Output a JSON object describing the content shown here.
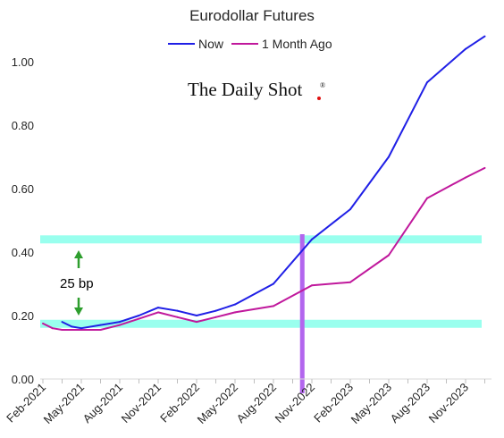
{
  "chart_data": {
    "type": "line",
    "title": "Eurodollar Futures",
    "xlabel": "",
    "ylabel": "",
    "categories": [
      "Feb-2021",
      "May-2021",
      "Aug-2021",
      "Nov-2021",
      "Feb-2022",
      "May-2022",
      "Aug-2022",
      "Nov-2022",
      "Feb-2023",
      "May-2023",
      "Aug-2023",
      "Nov-2023"
    ],
    "ylim": [
      0,
      1.1
    ],
    "yticks": [
      "0.00",
      "0.20",
      "0.40",
      "0.60",
      "0.80",
      "1.00"
    ],
    "ytick_values": [
      0,
      0.2,
      0.4,
      0.6,
      0.8,
      1.0
    ],
    "x_positions": [
      0,
      0.5,
      1,
      1.5,
      2,
      2.5,
      3,
      3.5,
      4,
      4.5,
      5,
      5.5,
      6,
      6.5,
      7,
      7.5,
      8,
      8.5,
      9,
      9.5,
      10,
      10.5,
      11,
      11.5
    ],
    "series": [
      {
        "name": "Now",
        "color": "#1f1fe6",
        "x": [
          0.5,
          0.75,
          1,
          1.5,
          2,
          2.5,
          3,
          3.5,
          4,
          4.5,
          5,
          6,
          7,
          8,
          9,
          10,
          11,
          11.5
        ],
        "values": [
          0.18,
          0.165,
          0.16,
          0.17,
          0.18,
          0.2,
          0.225,
          0.215,
          0.2,
          0.215,
          0.235,
          0.3,
          0.44,
          0.535,
          0.7,
          0.935,
          1.04,
          1.08
        ]
      },
      {
        "name": "1 Month Ago",
        "color": "#c0189c",
        "x": [
          0,
          0.25,
          0.5,
          1,
          1.5,
          2,
          2.5,
          3,
          3.5,
          4,
          4.5,
          5,
          6,
          7,
          8,
          9,
          10,
          11,
          11.5
        ],
        "values": [
          0.175,
          0.16,
          0.155,
          0.155,
          0.155,
          0.17,
          0.19,
          0.21,
          0.195,
          0.18,
          0.195,
          0.21,
          0.23,
          0.295,
          0.305,
          0.39,
          0.57,
          0.635,
          0.665
        ]
      }
    ],
    "legend": {
      "placement": "top-center",
      "entries": [
        "Now",
        "1 Month Ago"
      ]
    },
    "grid": false,
    "bands": [
      {
        "y": 0.174,
        "color": "#99ffee"
      },
      {
        "y": 0.44,
        "color": "#99ffee"
      }
    ],
    "vline": {
      "x": 6.75,
      "color": "#b366ee"
    },
    "annotations": [
      {
        "text": "25 bp",
        "color": "#2e9e2e",
        "from": 0.2,
        "to": 0.4
      }
    ],
    "watermark": "The Daily Shot",
    "watermark_mark": "®"
  }
}
